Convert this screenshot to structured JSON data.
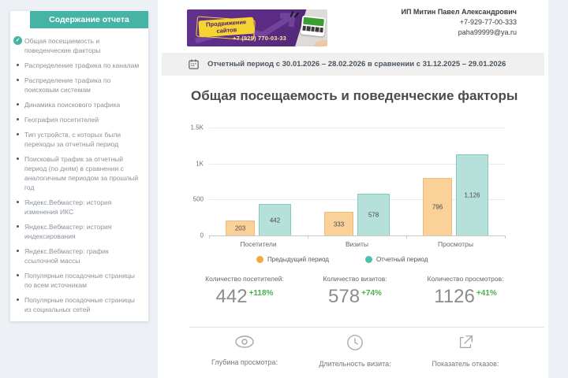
{
  "sidebar": {
    "title": "Содержание отчета",
    "items": [
      {
        "label": "Общая посещаемость и поведенческие факторы",
        "active": true
      },
      {
        "label": "Распределение трафика по каналам",
        "active": false
      },
      {
        "label": "Распределение трафика по поисковым системам",
        "active": false
      },
      {
        "label": "Динамика поискового трафика",
        "active": false
      },
      {
        "label": "География посетителей",
        "active": false
      },
      {
        "label": "Тип устройств, с которых были переходы за отчетный период",
        "active": false
      },
      {
        "label": "Поисковый трафик за отчетный период (по дням) в сравнении с аналогичным периодом за прошлый год",
        "active": false
      },
      {
        "label": "Яндекс.Вебмастер: история изменения ИКС",
        "active": false
      },
      {
        "label": "Яндекс.Вебмастер: история индексирования",
        "active": false
      },
      {
        "label": "Яндекс.Вебмастер: график ссылочной массы",
        "active": false
      },
      {
        "label": "Популярные посадочные страницы по всем источникам",
        "active": false
      },
      {
        "label": "Популярные посадочные страницы из социальных сетей",
        "active": false
      }
    ]
  },
  "header": {
    "banner": {
      "badge_line1": "Продвижение",
      "badge_line2": "сайтов",
      "phone": "+7 (929) 770-03-33"
    },
    "contact": {
      "name": "ИП Митин Павел Александрович",
      "phone": "+7-929-77-00-333",
      "email": "paha99999@ya.ru"
    }
  },
  "period_bar": {
    "text": "Отчетный период с 30.01.2026 – 28.02.2026 в сравнении с 31.12.2025 – 29.01.2026"
  },
  "main": {
    "title": "Общая посещаемость и поведенческие факторы"
  },
  "chart_data": {
    "type": "bar",
    "categories": [
      "Посетители",
      "Визиты",
      "Просмотры"
    ],
    "series": [
      {
        "name": "Предыдущий период",
        "values": [
          203,
          333,
          796
        ],
        "labels": [
          "203",
          "333",
          "796"
        ],
        "fill": "#FAD199",
        "border": "#F1BA7D",
        "dot": "#F3A83D"
      },
      {
        "name": "Отчетный период",
        "values": [
          442,
          578,
          1126
        ],
        "labels": [
          "442",
          "578",
          "1,126"
        ],
        "fill": "#B6E1DB",
        "border": "#7FCBBF",
        "dot": "#4EBFAE"
      }
    ],
    "ylim": [
      0,
      1500
    ],
    "yticks": [
      {
        "v": 0,
        "label": "0"
      },
      {
        "v": 500,
        "label": "500"
      },
      {
        "v": 1000,
        "label": "1K"
      },
      {
        "v": 1500,
        "label": "1.5K"
      }
    ],
    "grid": true,
    "legend_position": "bottom"
  },
  "stats": [
    {
      "label": "Количество посетителей:",
      "value": "442",
      "delta": "+118%"
    },
    {
      "label": "Количество визитов:",
      "value": "578",
      "delta": "+74%"
    },
    {
      "label": "Количество просмотров:",
      "value": "1126",
      "delta": "+41%"
    }
  ],
  "metrics": [
    {
      "icon": "eye-icon",
      "label": "Глубина просмотра:"
    },
    {
      "icon": "clock-icon",
      "label": "Длительность визита:"
    },
    {
      "icon": "bounce-icon",
      "label": "Показатель отказов:"
    }
  ],
  "colors": {
    "accent_teal": "#45B4A4",
    "delta_green": "#4CAF50",
    "banner_purple": "#5B2C83",
    "banner_yellow": "#F6D431"
  }
}
